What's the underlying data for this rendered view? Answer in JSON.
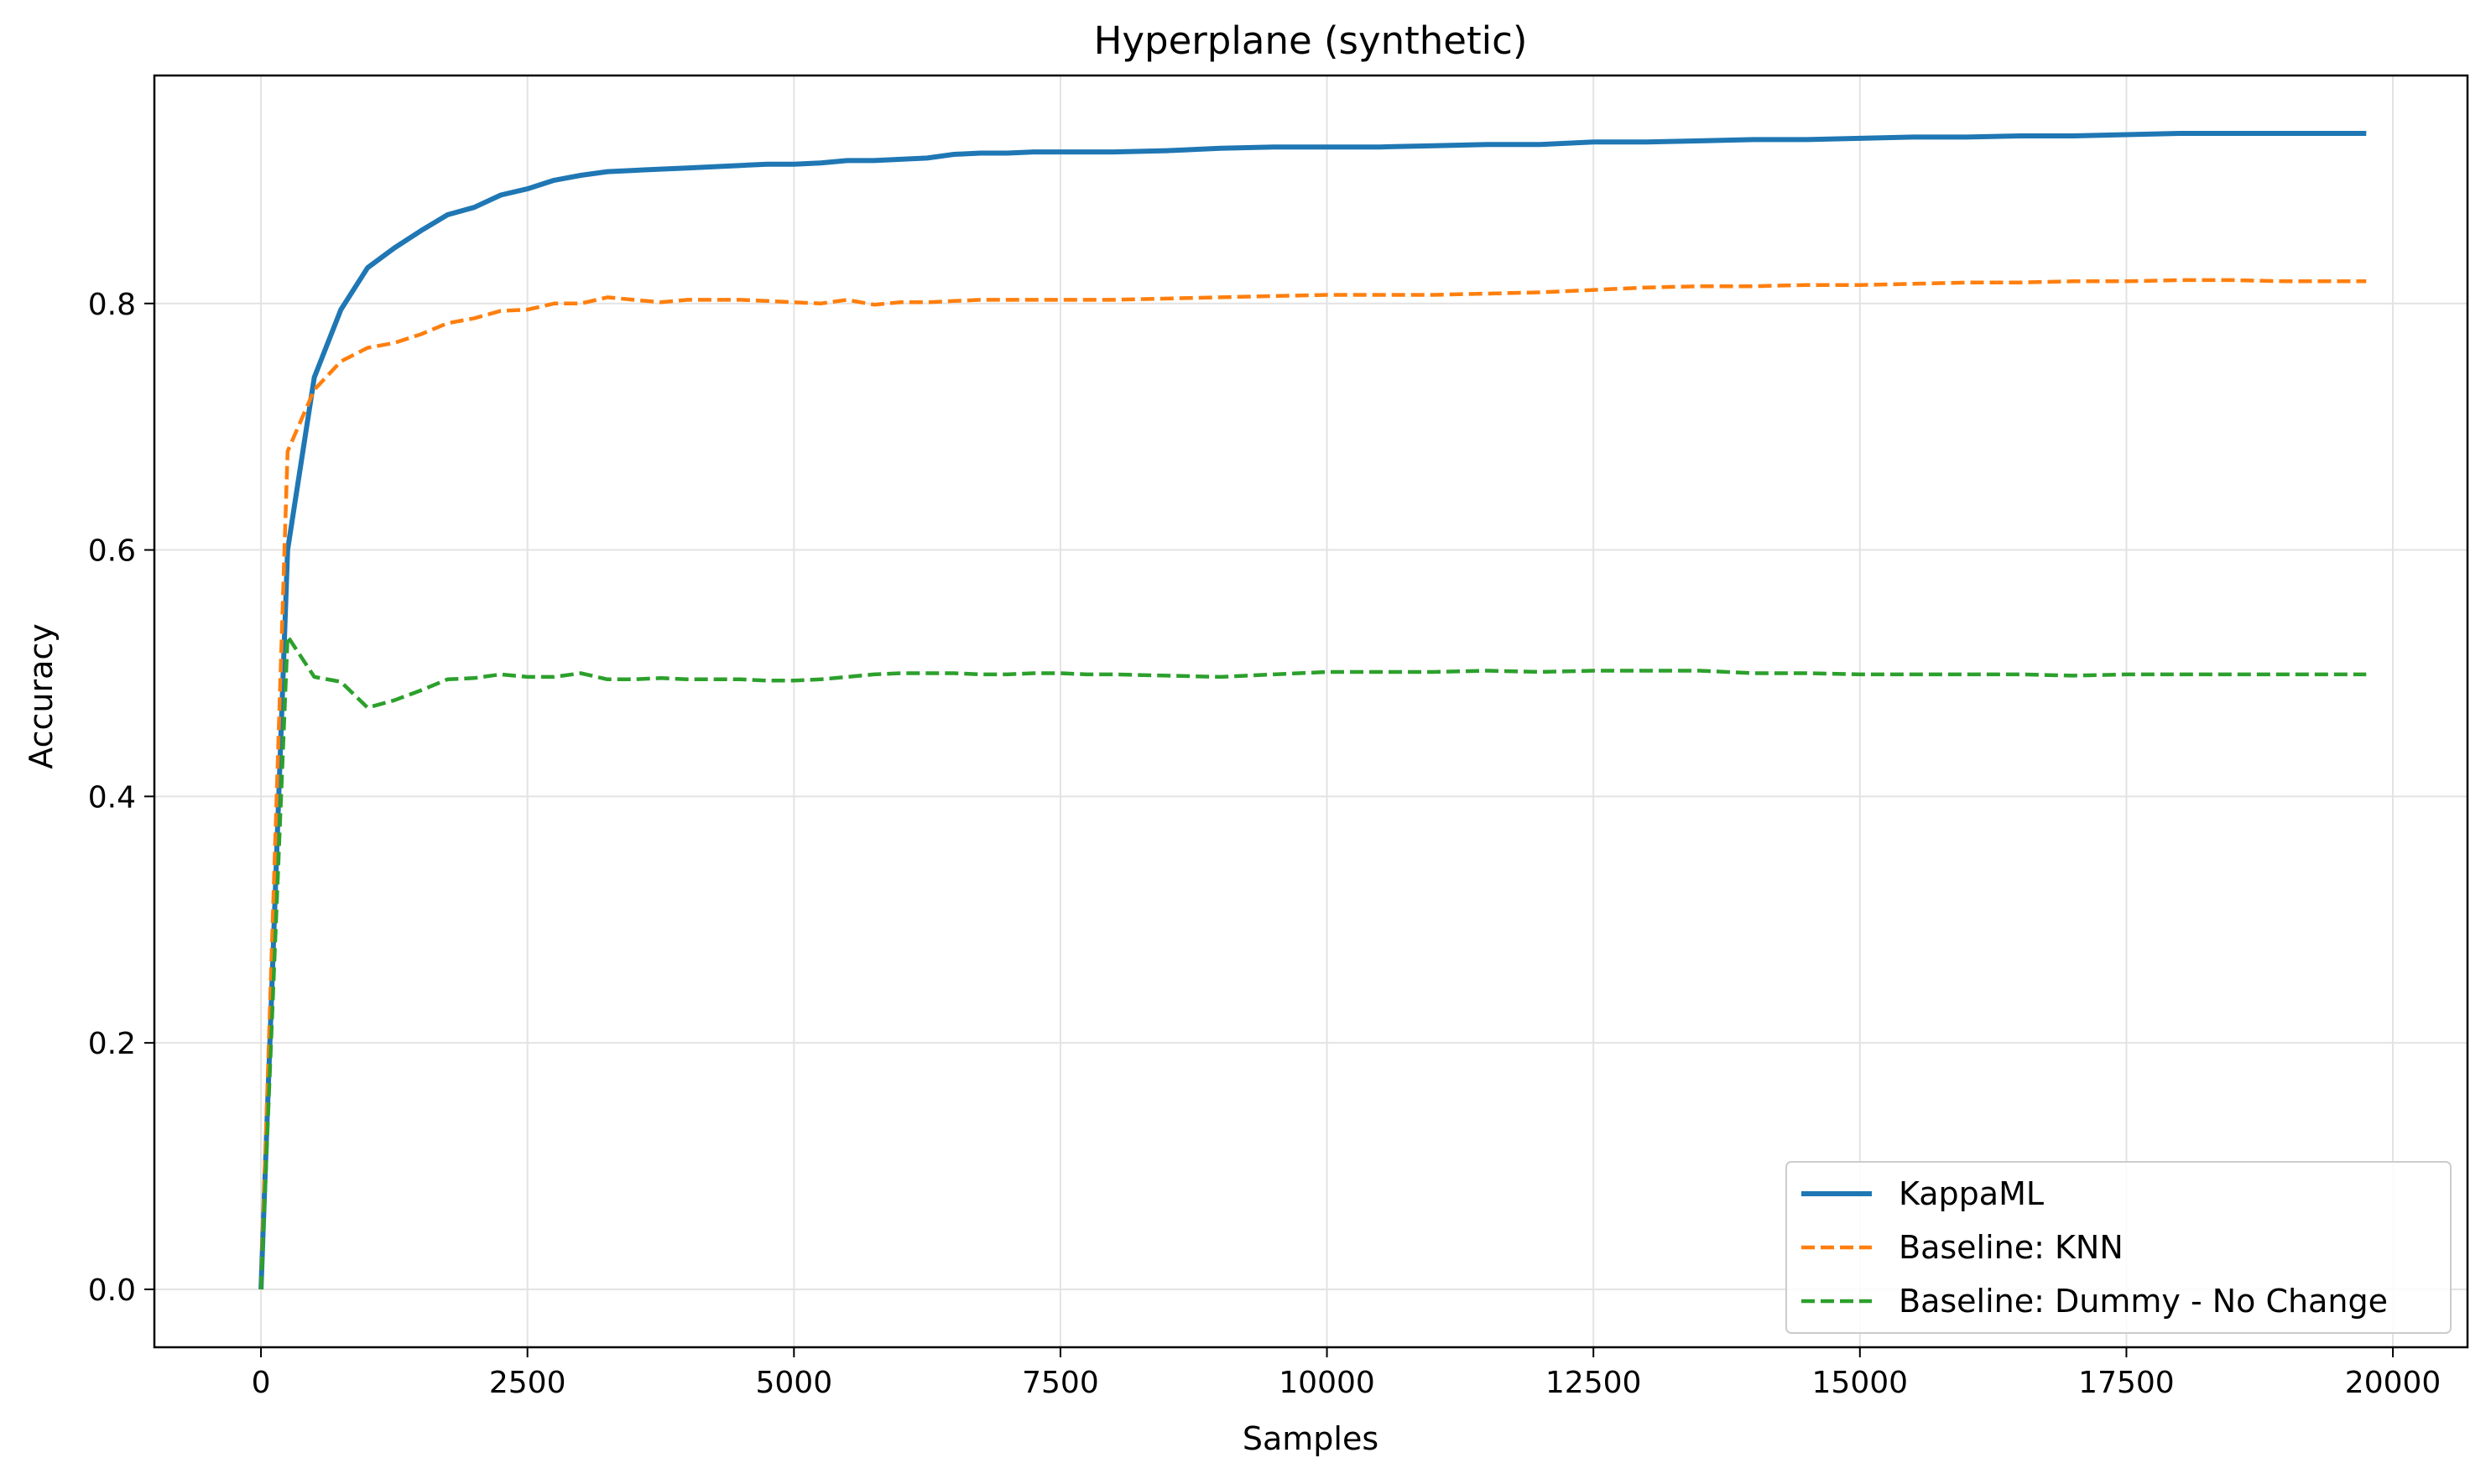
{
  "chart_data": {
    "type": "line",
    "title": "Hyperplane (synthetic)",
    "xlabel": "Samples",
    "ylabel": "Accuracy",
    "xlim": [
      -1000,
      20700
    ],
    "ylim": [
      -0.047,
      0.985
    ],
    "xticks": [
      0,
      2500,
      5000,
      7500,
      10000,
      12500,
      15000,
      17500,
      20000
    ],
    "xtick_labels": [
      "0",
      "2500",
      "5000",
      "7500",
      "10000",
      "12500",
      "15000",
      "17500",
      "20000"
    ],
    "yticks": [
      0.0,
      0.2,
      0.4,
      0.6,
      0.8
    ],
    "ytick_labels": [
      "0.0",
      "0.2",
      "0.4",
      "0.6",
      "0.8"
    ],
    "grid": true,
    "legend_position": "lower-right",
    "series": [
      {
        "name": "KappaML",
        "color": "#1f77b4",
        "style": "solid",
        "x": [
          0,
          250,
          500,
          750,
          1000,
          1250,
          1500,
          1750,
          2000,
          2250,
          2500,
          2750,
          3000,
          3250,
          3500,
          3750,
          4000,
          4250,
          4500,
          4750,
          5000,
          5250,
          5500,
          5750,
          6000,
          6250,
          6500,
          6750,
          7000,
          7250,
          7500,
          7750,
          8000,
          8500,
          9000,
          9500,
          10000,
          10500,
          11000,
          11500,
          12000,
          12500,
          13000,
          13500,
          14000,
          14500,
          15000,
          15500,
          16000,
          16500,
          17000,
          17500,
          18000,
          18500,
          19000,
          19500,
          19750
        ],
        "y": [
          0.0,
          0.6,
          0.74,
          0.795,
          0.829,
          0.845,
          0.859,
          0.872,
          0.878,
          0.888,
          0.893,
          0.9,
          0.904,
          0.907,
          0.908,
          0.909,
          0.91,
          0.911,
          0.912,
          0.913,
          0.913,
          0.914,
          0.916,
          0.916,
          0.917,
          0.918,
          0.921,
          0.922,
          0.922,
          0.923,
          0.923,
          0.923,
          0.923,
          0.924,
          0.926,
          0.927,
          0.927,
          0.927,
          0.928,
          0.929,
          0.929,
          0.931,
          0.931,
          0.932,
          0.933,
          0.933,
          0.934,
          0.935,
          0.935,
          0.936,
          0.936,
          0.937,
          0.938,
          0.938,
          0.938,
          0.938,
          0.938
        ]
      },
      {
        "name": "Baseline: KNN",
        "color": "#ff7f0e",
        "style": "dashed",
        "x": [
          0,
          250,
          500,
          750,
          1000,
          1250,
          1500,
          1750,
          2000,
          2250,
          2500,
          2750,
          3000,
          3250,
          3500,
          3750,
          4000,
          4250,
          4500,
          4750,
          5000,
          5250,
          5500,
          5750,
          6000,
          6250,
          6500,
          6750,
          7000,
          7250,
          7500,
          7750,
          8000,
          8500,
          9000,
          9500,
          10000,
          10500,
          11000,
          11500,
          12000,
          12500,
          13000,
          13500,
          14000,
          14500,
          15000,
          15500,
          16000,
          16500,
          17000,
          17500,
          18000,
          18500,
          19000,
          19500,
          19750
        ],
        "y": [
          0.0,
          0.68,
          0.73,
          0.753,
          0.764,
          0.768,
          0.775,
          0.784,
          0.788,
          0.794,
          0.795,
          0.8,
          0.8,
          0.805,
          0.803,
          0.801,
          0.803,
          0.803,
          0.803,
          0.802,
          0.801,
          0.8,
          0.803,
          0.799,
          0.801,
          0.801,
          0.802,
          0.803,
          0.803,
          0.803,
          0.803,
          0.803,
          0.803,
          0.804,
          0.805,
          0.806,
          0.807,
          0.807,
          0.807,
          0.808,
          0.809,
          0.811,
          0.813,
          0.814,
          0.814,
          0.815,
          0.815,
          0.816,
          0.817,
          0.817,
          0.818,
          0.818,
          0.819,
          0.819,
          0.818,
          0.818,
          0.818
        ]
      },
      {
        "name": "Baseline: Dummy - No Change",
        "color": "#2ca02c",
        "style": "dashed",
        "x": [
          0,
          250,
          500,
          750,
          1000,
          1250,
          1500,
          1750,
          2000,
          2250,
          2500,
          2750,
          3000,
          3250,
          3500,
          3750,
          4000,
          4250,
          4500,
          4750,
          5000,
          5250,
          5500,
          5750,
          6000,
          6250,
          6500,
          6750,
          7000,
          7250,
          7500,
          7750,
          8000,
          8500,
          9000,
          9500,
          10000,
          10500,
          11000,
          11500,
          12000,
          12500,
          13000,
          13500,
          14000,
          14500,
          15000,
          15500,
          16000,
          16500,
          17000,
          17500,
          18000,
          18500,
          19000,
          19500,
          19750
        ],
        "y": [
          0.0,
          0.53,
          0.497,
          0.493,
          0.472,
          0.478,
          0.486,
          0.495,
          0.496,
          0.499,
          0.497,
          0.497,
          0.5,
          0.495,
          0.495,
          0.496,
          0.495,
          0.495,
          0.495,
          0.494,
          0.494,
          0.495,
          0.497,
          0.499,
          0.5,
          0.5,
          0.5,
          0.499,
          0.499,
          0.5,
          0.5,
          0.499,
          0.499,
          0.498,
          0.497,
          0.499,
          0.501,
          0.501,
          0.501,
          0.502,
          0.501,
          0.502,
          0.502,
          0.502,
          0.5,
          0.5,
          0.499,
          0.499,
          0.499,
          0.499,
          0.498,
          0.499,
          0.499,
          0.499,
          0.499,
          0.499,
          0.499
        ]
      }
    ]
  }
}
